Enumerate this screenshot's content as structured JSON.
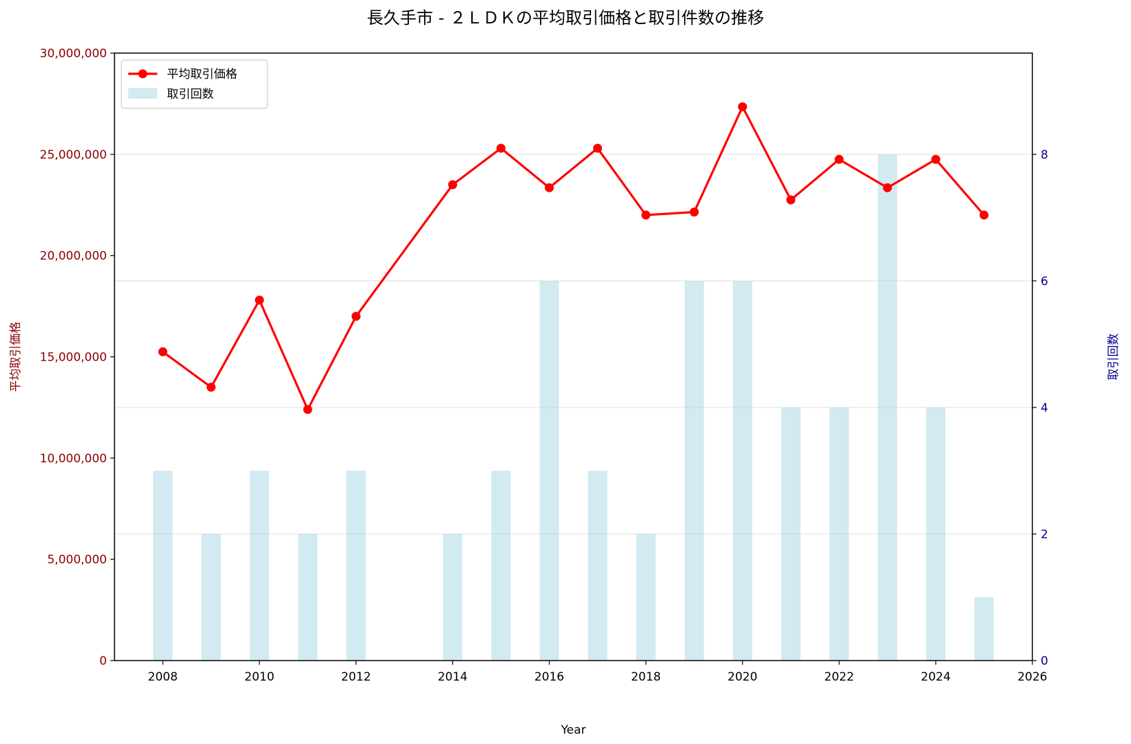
{
  "chart_data": {
    "type": "line",
    "title": "長久手市 - ２ＬＤＫの平均取引価格と取引件数の推移",
    "xlabel": "Year",
    "ylabel_left": "平均取引価格",
    "ylabel_right": "取引回数",
    "xlim": [
      2007,
      2026
    ],
    "ylim_left": [
      0,
      30000000
    ],
    "ylim_right": [
      0,
      9.6
    ],
    "x_ticks": [
      2008,
      2010,
      2012,
      2014,
      2016,
      2018,
      2020,
      2022,
      2024,
      2026
    ],
    "y_left_ticks": [
      0,
      5000000,
      10000000,
      15000000,
      20000000,
      25000000,
      30000000
    ],
    "y_left_tick_labels": [
      "0",
      "5,000,000",
      "10,000,000",
      "15,000,000",
      "20,000,000",
      "25,000,000",
      "30,000,000"
    ],
    "y_right_ticks": [
      0,
      2,
      4,
      6,
      8
    ],
    "y_right_tick_labels": [
      "0",
      "2",
      "4",
      "6",
      "8"
    ],
    "grid": "horizontal (right axis)",
    "legend_position": "top-left",
    "series": [
      {
        "name": "平均取引価格",
        "kind": "line",
        "axis": "left",
        "color": "#ff0000",
        "x": [
          2008,
          2009,
          2010,
          2011,
          2012,
          2014,
          2015,
          2016,
          2017,
          2018,
          2019,
          2020,
          2021,
          2022,
          2023,
          2024,
          2025
        ],
        "values": [
          15250000,
          13500000,
          17800000,
          12400000,
          17000000,
          23500000,
          25300000,
          23350000,
          25300000,
          22000000,
          22150000,
          27350000,
          22750000,
          24750000,
          23350000,
          24750000,
          22000000
        ]
      },
      {
        "name": "取引回数",
        "kind": "bar",
        "axis": "right",
        "color": "#add8e6",
        "x": [
          2008,
          2009,
          2010,
          2011,
          2012,
          2014,
          2015,
          2016,
          2017,
          2018,
          2019,
          2020,
          2021,
          2022,
          2023,
          2024,
          2025
        ],
        "values": [
          3,
          2,
          3,
          2,
          3,
          2,
          3,
          6,
          3,
          2,
          6,
          6,
          4,
          4,
          8,
          4,
          1
        ]
      }
    ]
  }
}
